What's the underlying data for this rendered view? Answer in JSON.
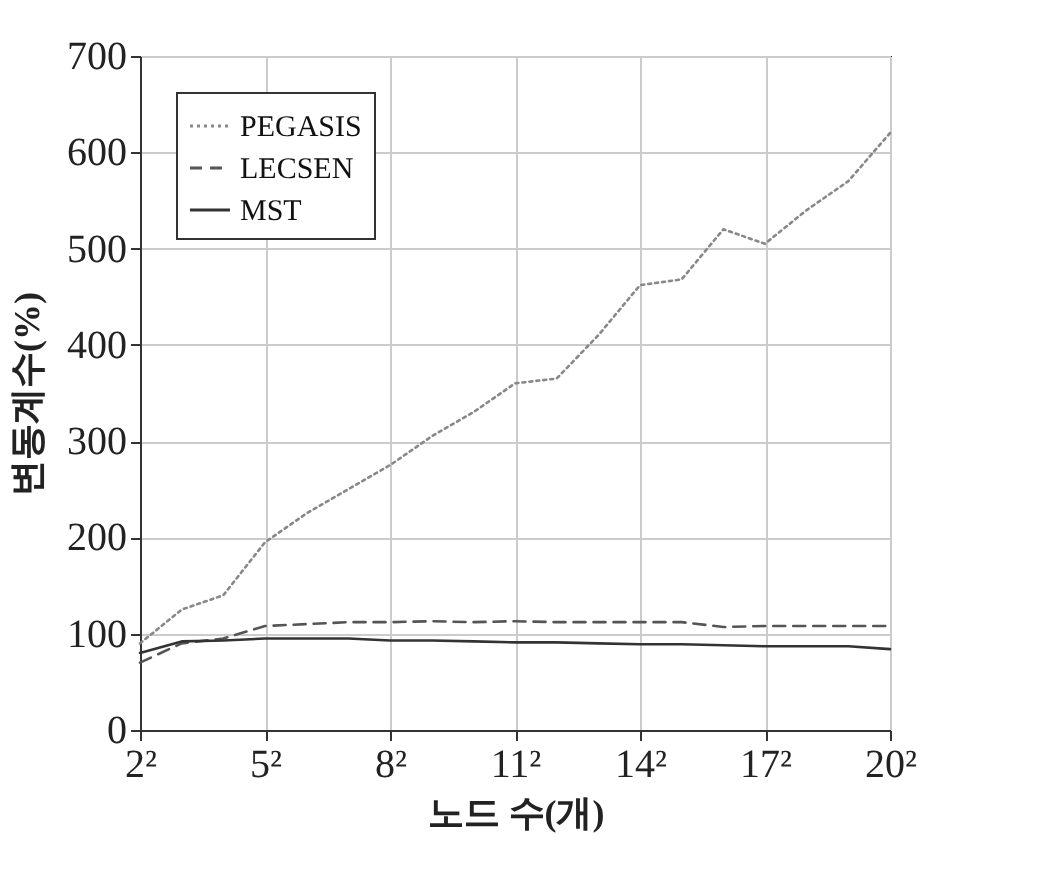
{
  "chart_data": {
    "type": "line",
    "xlabel": "노드 수(개)",
    "ylabel": "변동계수(%)",
    "categories": [
      "2²",
      null,
      null,
      "5²",
      null,
      null,
      "8²",
      null,
      null,
      "11²",
      null,
      null,
      "14²",
      null,
      null,
      "17²",
      null,
      null,
      "20²"
    ],
    "ylim": [
      0,
      700
    ],
    "yticks": [
      0,
      100,
      200,
      300,
      400,
      500,
      600,
      700
    ],
    "grid": true,
    "legend": "top left",
    "marker": "none",
    "series": [
      {
        "name": "PEGASIS",
        "color": "#888888",
        "line_style": "dotted",
        "values": [
          90,
          125,
          140,
          195,
          225,
          250,
          275,
          305,
          330,
          360,
          365,
          410,
          462,
          468,
          520,
          505,
          540,
          570,
          620
        ]
      },
      {
        "name": "LECSEN",
        "color": "#555555",
        "line_style": "dashed",
        "values": [
          70,
          90,
          95,
          108,
          110,
          112,
          112,
          113,
          112,
          113,
          112,
          112,
          112,
          112,
          107,
          108,
          108,
          108,
          108
        ]
      },
      {
        "name": "MST",
        "color": "#333333",
        "line_style": "solid",
        "values": [
          80,
          92,
          93,
          95,
          95,
          95,
          93,
          93,
          92,
          91,
          91,
          90,
          89,
          89,
          88,
          87,
          87,
          87,
          84
        ]
      }
    ]
  }
}
